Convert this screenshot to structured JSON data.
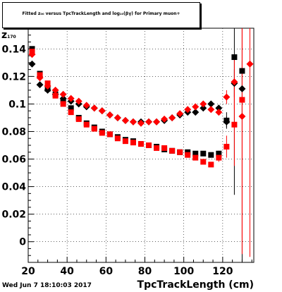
{
  "title": "Fitted  z₀₀  versus TpcTrackLength and log₁₀(βγ) for Primary muon+",
  "timestamp": "Wed Jun  7 18:10:03 2017",
  "chart_data": {
    "type": "scatter",
    "title": "Fitted  z₀₀  versus TpcTrackLength and log₁₀(βγ) for Primary muon+",
    "xlabel": "TpcTrackLength (cm)",
    "ylabel": "z",
    "ylabel_sub": "170",
    "xlim": [
      20,
      136
    ],
    "ylim": [
      -0.015,
      0.155
    ],
    "x_ticks": [
      20,
      40,
      60,
      80,
      100,
      120
    ],
    "y_ticks": [
      0,
      0.02,
      0.04,
      0.06,
      0.08,
      0.1,
      0.12,
      0.14
    ],
    "y_tick_labels": [
      "0",
      "0.02",
      "0.04",
      "0.06",
      "0.08",
      "0.1",
      "0.12",
      "0.14"
    ],
    "grid": true,
    "series": [
      {
        "color": "#000000",
        "marker": "diamond",
        "points": [
          [
            22,
            0.129,
            0.001
          ],
          [
            26,
            0.114,
            0.001
          ],
          [
            30,
            0.11,
            0.001
          ],
          [
            34,
            0.107,
            0.001
          ],
          [
            38,
            0.104,
            0.001
          ],
          [
            42,
            0.102,
            0.001
          ],
          [
            46,
            0.1,
            0.001
          ],
          [
            50,
            0.098,
            0.001
          ],
          [
            54,
            0.097,
            0.001
          ],
          [
            58,
            0.095,
            0.001
          ],
          [
            62,
            0.092,
            0.001
          ],
          [
            66,
            0.09,
            0.001
          ],
          [
            70,
            0.088,
            0.001
          ],
          [
            74,
            0.087,
            0.001
          ],
          [
            78,
            0.087,
            0.001
          ],
          [
            82,
            0.087,
            0.001
          ],
          [
            86,
            0.087,
            0.001
          ],
          [
            90,
            0.088,
            0.001
          ],
          [
            94,
            0.09,
            0.001
          ],
          [
            98,
            0.092,
            0.001
          ],
          [
            102,
            0.094,
            0.001
          ],
          [
            106,
            0.094,
            0.001
          ],
          [
            110,
            0.097,
            0.001
          ],
          [
            114,
            0.1,
            0.001
          ],
          [
            118,
            0.097,
            0.001
          ],
          [
            122,
            0.087,
            0.004
          ],
          [
            126,
            0.115,
            0.01
          ],
          [
            130,
            0.111,
            0.02
          ]
        ]
      },
      {
        "color": "#000000",
        "marker": "square",
        "points": [
          [
            22,
            0.14,
            0.001
          ],
          [
            26,
            0.122,
            0.001
          ],
          [
            30,
            0.111,
            0.001
          ],
          [
            34,
            0.107,
            0.001
          ],
          [
            38,
            0.102,
            0.001
          ],
          [
            42,
            0.097,
            0.001
          ],
          [
            46,
            0.09,
            0.001
          ],
          [
            50,
            0.086,
            0.001
          ],
          [
            54,
            0.083,
            0.001
          ],
          [
            58,
            0.08,
            0.001
          ],
          [
            62,
            0.078,
            0.001
          ],
          [
            66,
            0.076,
            0.001
          ],
          [
            70,
            0.074,
            0.001
          ],
          [
            74,
            0.073,
            0.001
          ],
          [
            78,
            0.071,
            0.001
          ],
          [
            82,
            0.07,
            0.001
          ],
          [
            86,
            0.069,
            0.001
          ],
          [
            90,
            0.067,
            0.001
          ],
          [
            94,
            0.066,
            0.001
          ],
          [
            98,
            0.065,
            0.001
          ],
          [
            102,
            0.065,
            0.001
          ],
          [
            106,
            0.064,
            0.001
          ],
          [
            110,
            0.064,
            0.001
          ],
          [
            114,
            0.063,
            0.001
          ],
          [
            118,
            0.064,
            0.002
          ],
          [
            122,
            0.088,
            0.006
          ],
          [
            126,
            0.134,
            0.1
          ],
          [
            130,
            0.124,
            0.14
          ]
        ]
      },
      {
        "color": "#ff0000",
        "marker": "diamond",
        "points": [
          [
            22,
            0.136,
            0.001
          ],
          [
            26,
            0.119,
            0.001
          ],
          [
            30,
            0.113,
            0.001
          ],
          [
            34,
            0.11,
            0.001
          ],
          [
            38,
            0.107,
            0.001
          ],
          [
            42,
            0.104,
            0.001
          ],
          [
            46,
            0.102,
            0.001
          ],
          [
            50,
            0.099,
            0.001
          ],
          [
            54,
            0.097,
            0.001
          ],
          [
            58,
            0.095,
            0.001
          ],
          [
            62,
            0.092,
            0.001
          ],
          [
            66,
            0.09,
            0.001
          ],
          [
            70,
            0.088,
            0.001
          ],
          [
            74,
            0.087,
            0.001
          ],
          [
            78,
            0.086,
            0.001
          ],
          [
            82,
            0.087,
            0.001
          ],
          [
            86,
            0.087,
            0.001
          ],
          [
            90,
            0.089,
            0.001
          ],
          [
            94,
            0.09,
            0.001
          ],
          [
            98,
            0.093,
            0.001
          ],
          [
            102,
            0.096,
            0.001
          ],
          [
            106,
            0.098,
            0.001
          ],
          [
            110,
            0.1,
            0.001
          ],
          [
            114,
            0.096,
            0.001
          ],
          [
            118,
            0.094,
            0.002
          ],
          [
            122,
            0.105,
            0.005
          ],
          [
            126,
            0.116,
            0.02
          ],
          [
            130,
            0.091,
            0.1
          ],
          [
            134,
            0.129,
            0.14
          ]
        ]
      },
      {
        "color": "#ff0000",
        "marker": "square",
        "points": [
          [
            22,
            0.138,
            0.001
          ],
          [
            26,
            0.121,
            0.001
          ],
          [
            30,
            0.115,
            0.001
          ],
          [
            34,
            0.106,
            0.001
          ],
          [
            38,
            0.1,
            0.001
          ],
          [
            42,
            0.094,
            0.001
          ],
          [
            46,
            0.089,
            0.001
          ],
          [
            50,
            0.085,
            0.001
          ],
          [
            54,
            0.082,
            0.001
          ],
          [
            58,
            0.079,
            0.001
          ],
          [
            62,
            0.078,
            0.001
          ],
          [
            66,
            0.075,
            0.001
          ],
          [
            70,
            0.073,
            0.001
          ],
          [
            74,
            0.072,
            0.001
          ],
          [
            78,
            0.071,
            0.001
          ],
          [
            82,
            0.07,
            0.001
          ],
          [
            86,
            0.068,
            0.001
          ],
          [
            90,
            0.068,
            0.001
          ],
          [
            94,
            0.066,
            0.001
          ],
          [
            98,
            0.065,
            0.001
          ],
          [
            102,
            0.063,
            0.001
          ],
          [
            106,
            0.061,
            0.001
          ],
          [
            110,
            0.058,
            0.001
          ],
          [
            114,
            0.056,
            0.001
          ],
          [
            118,
            0.061,
            0.003
          ],
          [
            122,
            0.069,
            0.008
          ],
          [
            126,
            0.085,
            0.03
          ],
          [
            130,
            0.103,
            0.1
          ]
        ]
      }
    ]
  }
}
